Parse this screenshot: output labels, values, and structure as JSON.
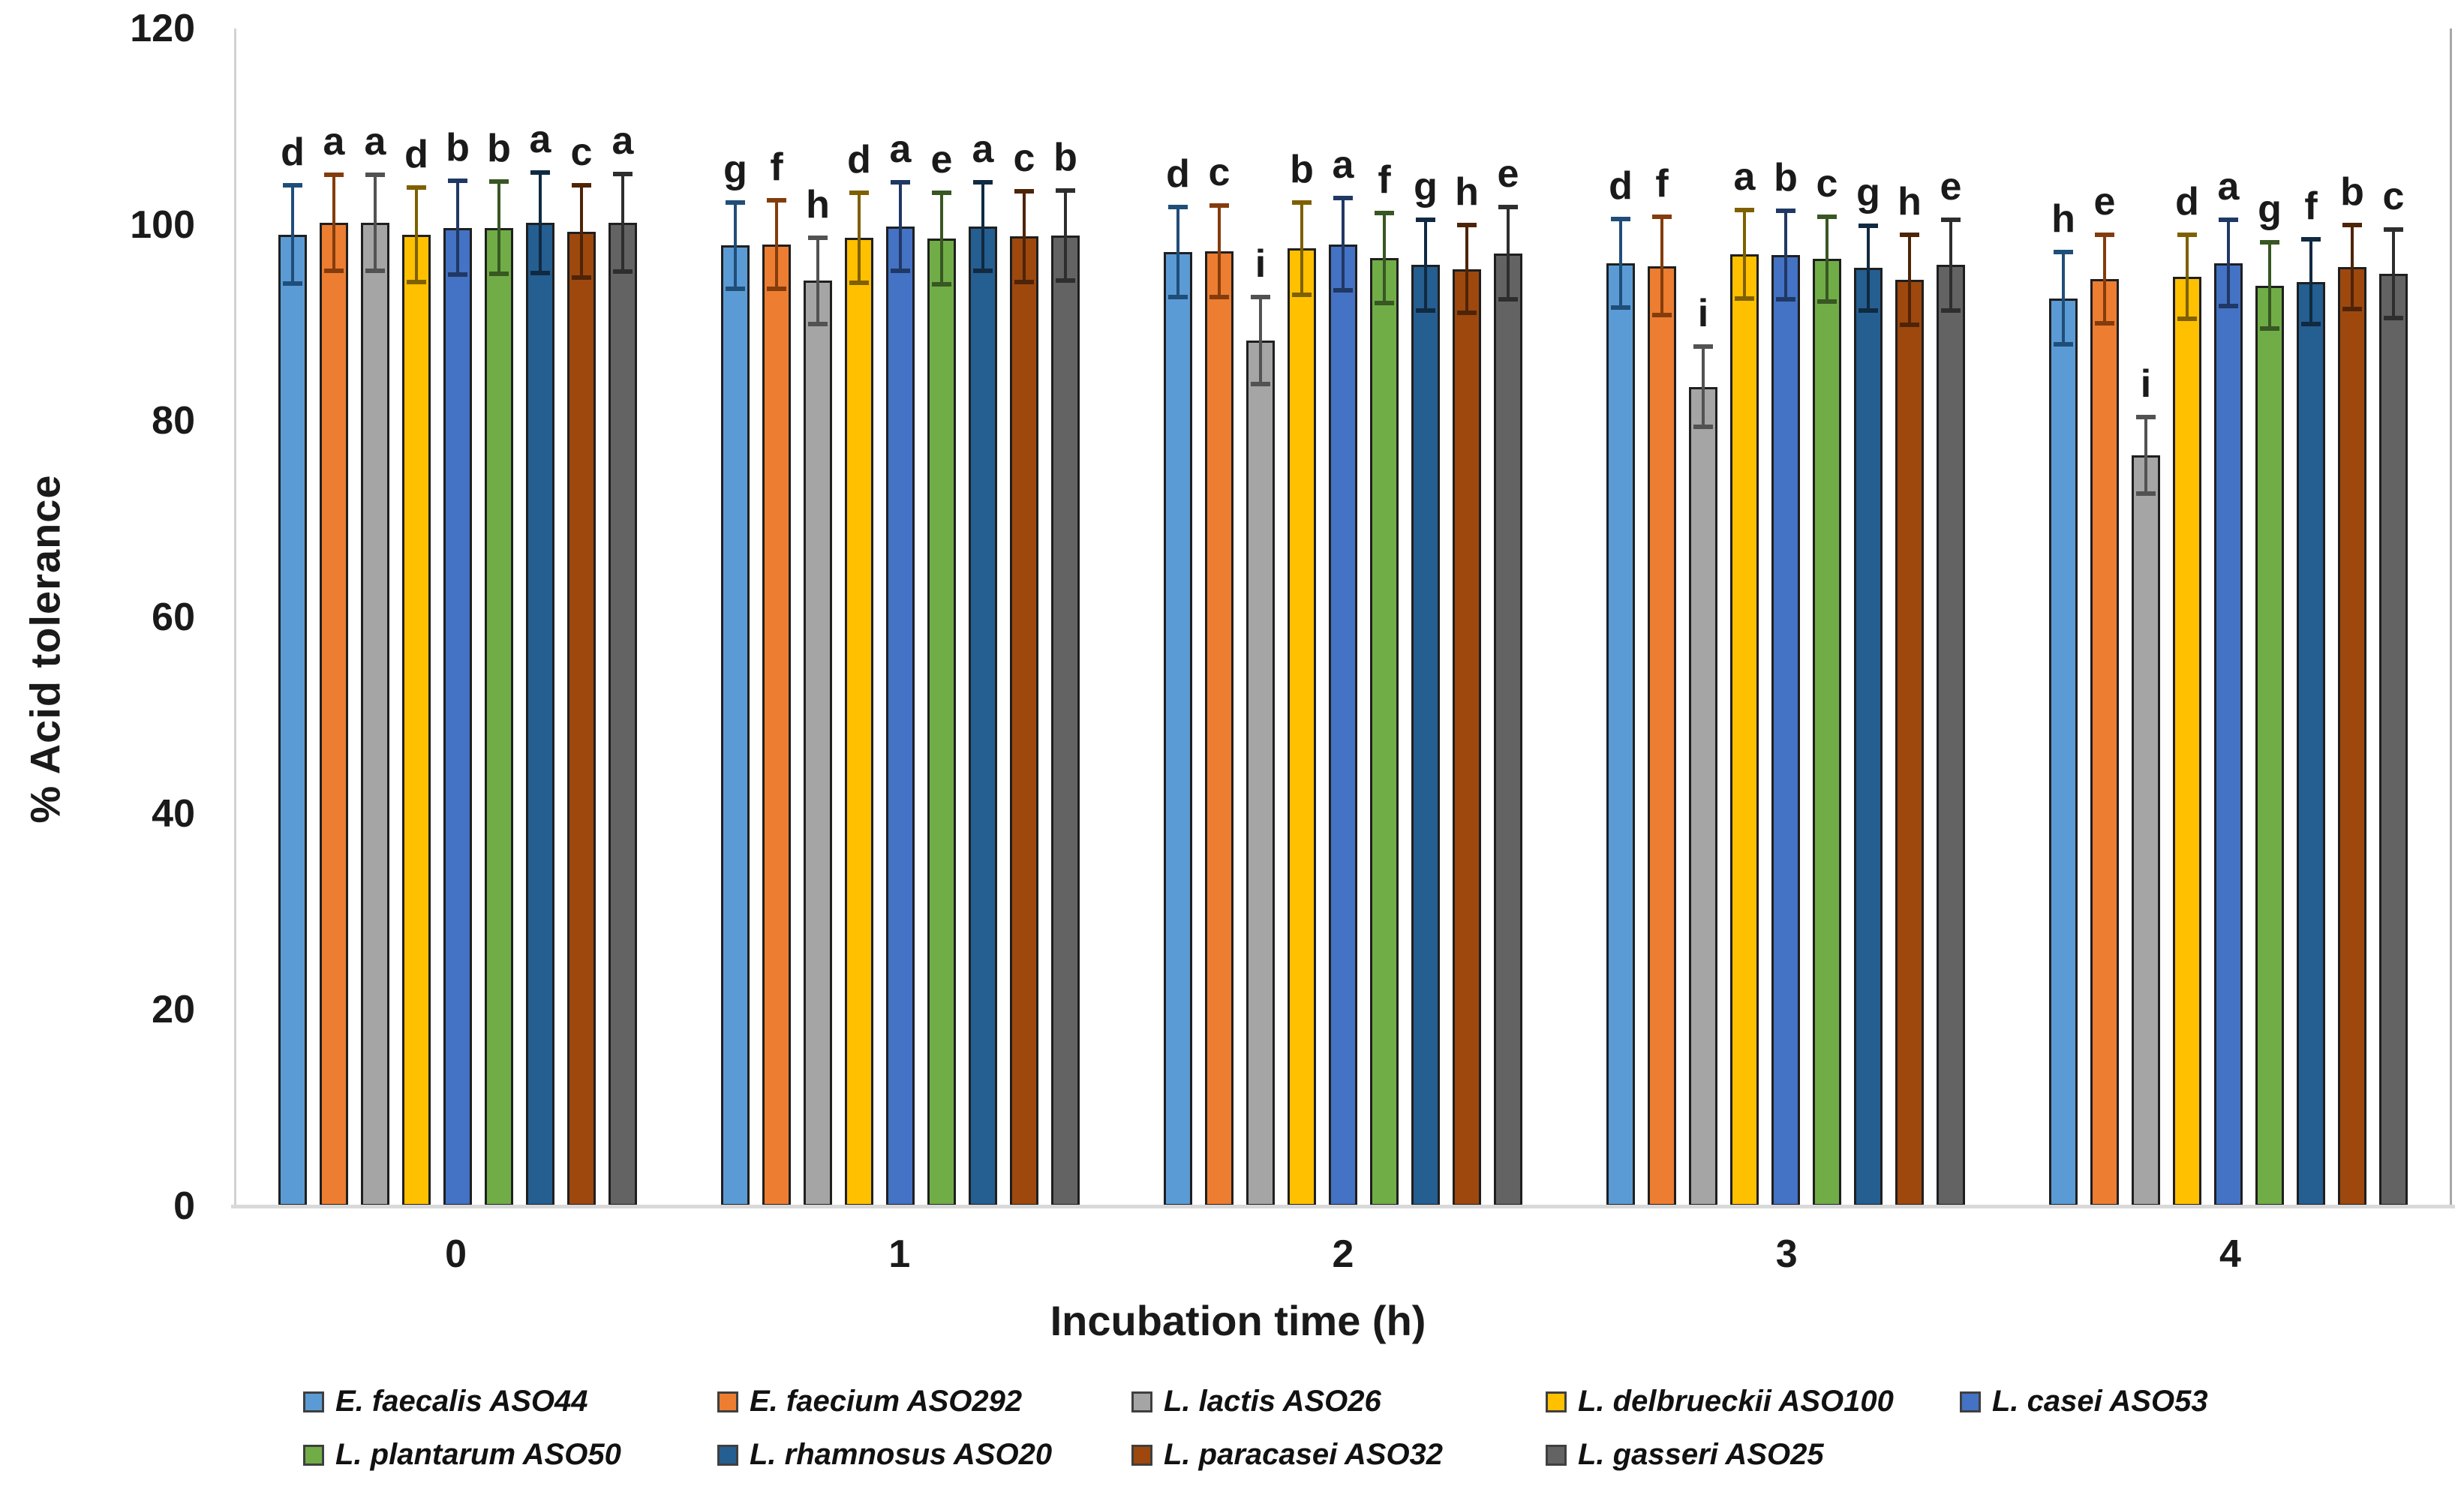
{
  "chart_data": {
    "type": "bar",
    "title": "",
    "xlabel": "Incubation time (h)",
    "ylabel": "% Acid tolerance",
    "ylim": [
      0,
      120
    ],
    "yticks": [
      0,
      20,
      40,
      60,
      80,
      100,
      120
    ],
    "categories": [
      "0",
      "1",
      "2",
      "3",
      "4"
    ],
    "grid": "off",
    "legend_position": "bottom",
    "series": [
      {
        "name": "E. faecalis ASO44",
        "color": "#5B9BD5",
        "error_color": "#1F4E79",
        "values": [
          99.0,
          97.9,
          97.2,
          96.1,
          92.5
        ],
        "errors": [
          5.0,
          4.4,
          4.6,
          4.5,
          4.7
        ],
        "letters": [
          "d",
          "g",
          "d",
          "d",
          "h"
        ]
      },
      {
        "name": "E. faecium ASO292",
        "color": "#ED7D31",
        "error_color": "#843C0C",
        "values": [
          100.2,
          98.0,
          97.3,
          95.8,
          94.5
        ],
        "errors": [
          4.9,
          4.5,
          4.7,
          5.0,
          4.5
        ],
        "letters": [
          "a",
          "f",
          "c",
          "f",
          "e"
        ]
      },
      {
        "name": "L. lactis ASO26",
        "color": "#A5A5A5",
        "error_color": "#525252",
        "values": [
          100.2,
          94.3,
          88.2,
          83.5,
          76.5
        ],
        "errors": [
          4.9,
          4.4,
          4.4,
          4.1,
          3.9
        ],
        "letters": [
          "a",
          "h",
          "i",
          "i",
          "i"
        ]
      },
      {
        "name": "L. delbrueckii ASO100",
        "color": "#FFC000",
        "error_color": "#7F6000",
        "values": [
          99.0,
          98.7,
          97.6,
          97.0,
          94.7
        ],
        "errors": [
          4.8,
          4.6,
          4.7,
          4.5,
          4.3
        ],
        "letters": [
          "d",
          "d",
          "b",
          "a",
          "d"
        ]
      },
      {
        "name": "L. casei ASO53",
        "color": "#4472C4",
        "error_color": "#203864",
        "values": [
          99.7,
          99.8,
          98.0,
          96.9,
          96.1
        ],
        "errors": [
          4.8,
          4.5,
          4.7,
          4.5,
          4.4
        ],
        "letters": [
          "b",
          "a",
          "a",
          "b",
          "a"
        ]
      },
      {
        "name": "L. plantarum ASO50",
        "color": "#70AD47",
        "error_color": "#385723",
        "values": [
          99.7,
          98.6,
          96.6,
          96.5,
          93.8
        ],
        "errors": [
          4.7,
          4.7,
          4.6,
          4.3,
          4.4
        ],
        "letters": [
          "b",
          "e",
          "f",
          "c",
          "g"
        ]
      },
      {
        "name": "L. rhamnosus ASO20",
        "color": "#255E91",
        "error_color": "#102A41",
        "values": [
          100.2,
          99.8,
          95.9,
          95.6,
          94.2
        ],
        "errors": [
          5.1,
          4.5,
          4.6,
          4.3,
          4.3
        ],
        "letters": [
          "a",
          "a",
          "g",
          "g",
          "f"
        ]
      },
      {
        "name": "L. paracasei ASO32",
        "color": "#9E480E",
        "error_color": "#4E2407",
        "values": [
          99.3,
          98.8,
          95.5,
          94.4,
          95.7
        ],
        "errors": [
          4.7,
          4.6,
          4.5,
          4.6,
          4.3
        ],
        "letters": [
          "c",
          "c",
          "h",
          "h",
          "b"
        ]
      },
      {
        "name": "L. gasseri ASO25",
        "color": "#636363",
        "error_color": "#2E2E2E",
        "values": [
          100.2,
          98.9,
          97.1,
          95.9,
          95.0
        ],
        "errors": [
          5.0,
          4.6,
          4.7,
          4.6,
          4.5
        ],
        "letters": [
          "a",
          "b",
          "e",
          "e",
          "c"
        ]
      }
    ]
  }
}
